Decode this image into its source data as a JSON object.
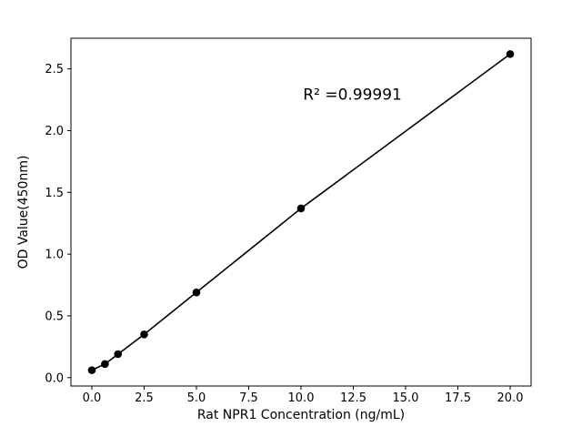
{
  "chart_data": {
    "type": "scatter",
    "title": "",
    "xlabel": "Rat NPR1 Concentration (ng/mL)",
    "ylabel": "OD Value(450nm)",
    "x": [
      0,
      0.625,
      1.25,
      2.5,
      5,
      10,
      20
    ],
    "y": [
      0.06,
      0.11,
      0.19,
      0.35,
      0.69,
      1.37,
      2.62
    ],
    "line": true,
    "xlim": [
      -1,
      21
    ],
    "ylim": [
      -0.068,
      2.748
    ],
    "xticks": [
      0.0,
      2.5,
      5.0,
      7.5,
      10.0,
      12.5,
      15.0,
      17.5,
      20.0
    ],
    "xtick_labels": [
      "0.0",
      "2.5",
      "5.0",
      "7.5",
      "10.0",
      "12.5",
      "15.0",
      "17.5",
      "20.0"
    ],
    "yticks": [
      0.0,
      0.5,
      1.0,
      1.5,
      2.0,
      2.5
    ],
    "ytick_labels": [
      "0.0",
      "0.5",
      "1.0",
      "1.5",
      "2.0",
      "2.5"
    ],
    "grid": false,
    "legend": null,
    "annotation": {
      "text": "R² =0.99991",
      "x": 10.1,
      "y": 2.25
    },
    "colors": {
      "line": "#000000",
      "marker": "#000000",
      "axis": "#000000",
      "text": "#000000",
      "background": "#ffffff"
    }
  }
}
